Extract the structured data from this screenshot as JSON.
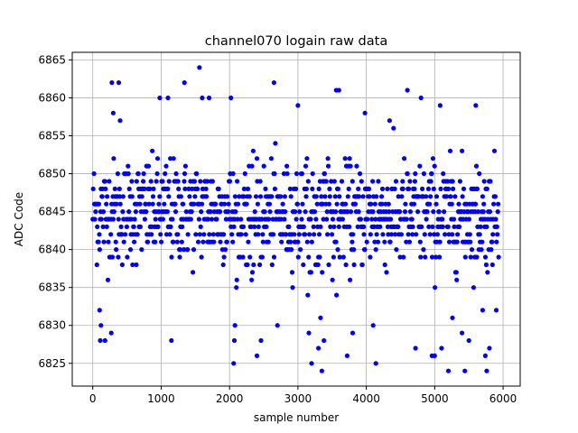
{
  "chart_data": {
    "type": "scatter",
    "title": "channel070 logain raw data",
    "xlabel": "sample number",
    "ylabel": "ADC Code",
    "xlim": [
      -300,
      6250
    ],
    "ylim": [
      6822,
      6866
    ],
    "x_ticks": [
      0,
      1000,
      2000,
      3000,
      4000,
      5000,
      6000
    ],
    "y_ticks": [
      6825,
      6830,
      6835,
      6840,
      6845,
      6850,
      6855,
      6860,
      6865
    ],
    "x_tick_labels": [
      "0",
      "1000",
      "2000",
      "3000",
      "4000",
      "5000",
      "6000"
    ],
    "y_tick_labels": [
      "6825",
      "6830",
      "6835",
      "6840",
      "6845",
      "6850",
      "6855",
      "6860",
      "6865"
    ],
    "grid": true,
    "marker_color": "#0000ff",
    "n_samples": 5940,
    "approx_center": 6845,
    "dense_band": [
      6836,
      6853
    ],
    "outlier_points": [
      {
        "x": 100,
        "y": 6832
      },
      {
        "x": 110,
        "y": 6828
      },
      {
        "x": 120,
        "y": 6830
      },
      {
        "x": 180,
        "y": 6828
      },
      {
        "x": 270,
        "y": 6829
      },
      {
        "x": 280,
        "y": 6862
      },
      {
        "x": 300,
        "y": 6858
      },
      {
        "x": 380,
        "y": 6862
      },
      {
        "x": 400,
        "y": 6857
      },
      {
        "x": 980,
        "y": 6860
      },
      {
        "x": 1100,
        "y": 6860
      },
      {
        "x": 1150,
        "y": 6828
      },
      {
        "x": 1340,
        "y": 6862
      },
      {
        "x": 1560,
        "y": 6864
      },
      {
        "x": 1600,
        "y": 6860
      },
      {
        "x": 1700,
        "y": 6860
      },
      {
        "x": 2020,
        "y": 6860
      },
      {
        "x": 2060,
        "y": 6825
      },
      {
        "x": 2070,
        "y": 6828
      },
      {
        "x": 2080,
        "y": 6830
      },
      {
        "x": 2400,
        "y": 6826
      },
      {
        "x": 2460,
        "y": 6828
      },
      {
        "x": 2650,
        "y": 6862
      },
      {
        "x": 2700,
        "y": 6830
      },
      {
        "x": 3000,
        "y": 6859
      },
      {
        "x": 3160,
        "y": 6829
      },
      {
        "x": 3200,
        "y": 6825
      },
      {
        "x": 3300,
        "y": 6827
      },
      {
        "x": 3330,
        "y": 6831
      },
      {
        "x": 3350,
        "y": 6824
      },
      {
        "x": 3380,
        "y": 6828
      },
      {
        "x": 3560,
        "y": 6861
      },
      {
        "x": 3600,
        "y": 6861
      },
      {
        "x": 3720,
        "y": 6826
      },
      {
        "x": 3800,
        "y": 6829
      },
      {
        "x": 3980,
        "y": 6858
      },
      {
        "x": 4100,
        "y": 6830
      },
      {
        "x": 4140,
        "y": 6825
      },
      {
        "x": 4340,
        "y": 6857
      },
      {
        "x": 4600,
        "y": 6861
      },
      {
        "x": 4720,
        "y": 6827
      },
      {
        "x": 4800,
        "y": 6860
      },
      {
        "x": 4960,
        "y": 6826
      },
      {
        "x": 5000,
        "y": 6826
      },
      {
        "x": 5080,
        "y": 6859
      },
      {
        "x": 5100,
        "y": 6827
      },
      {
        "x": 5200,
        "y": 6824
      },
      {
        "x": 5260,
        "y": 6831
      },
      {
        "x": 5400,
        "y": 6829
      },
      {
        "x": 5440,
        "y": 6824
      },
      {
        "x": 5500,
        "y": 6828
      },
      {
        "x": 5600,
        "y": 6859
      },
      {
        "x": 5700,
        "y": 6832
      },
      {
        "x": 5740,
        "y": 6826
      },
      {
        "x": 5760,
        "y": 6824
      },
      {
        "x": 5800,
        "y": 6827
      },
      {
        "x": 5900,
        "y": 6832
      }
    ]
  }
}
